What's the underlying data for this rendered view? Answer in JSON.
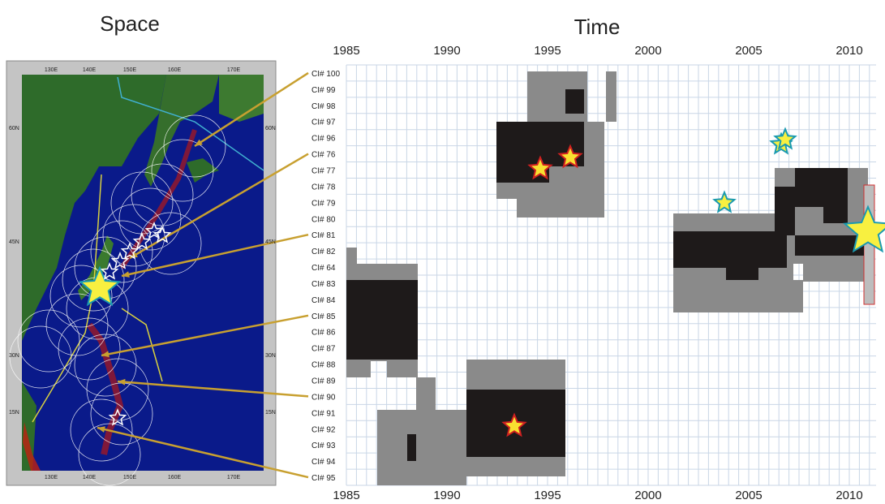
{
  "titles": {
    "space": "Space",
    "time": "Time"
  },
  "years": [
    "1985",
    "1990",
    "1995",
    "2000",
    "2005",
    "2010"
  ],
  "rows": [
    "CI# 100",
    "CI# 99",
    "CI# 98",
    "CI# 97",
    "CI# 96",
    "CI# 76",
    "CI# 77",
    "CI# 78",
    "CI# 79",
    "CI# 80",
    "CI# 81",
    "CI# 82",
    "CI# 64",
    "CI# 83",
    "CI# 84",
    "CI# 85",
    "CI# 86",
    "CI# 87",
    "CI# 88",
    "CI# 89",
    "CI# 90",
    "CI# 91",
    "CI# 92",
    "CI# 93",
    "CI# 94",
    "CI# 95"
  ],
  "map": {
    "longitudes": [
      "130E",
      "140E",
      "150E",
      "160E",
      "170E"
    ],
    "latitudes": [
      "60N",
      "45N",
      "30N",
      "15N"
    ]
  }
}
